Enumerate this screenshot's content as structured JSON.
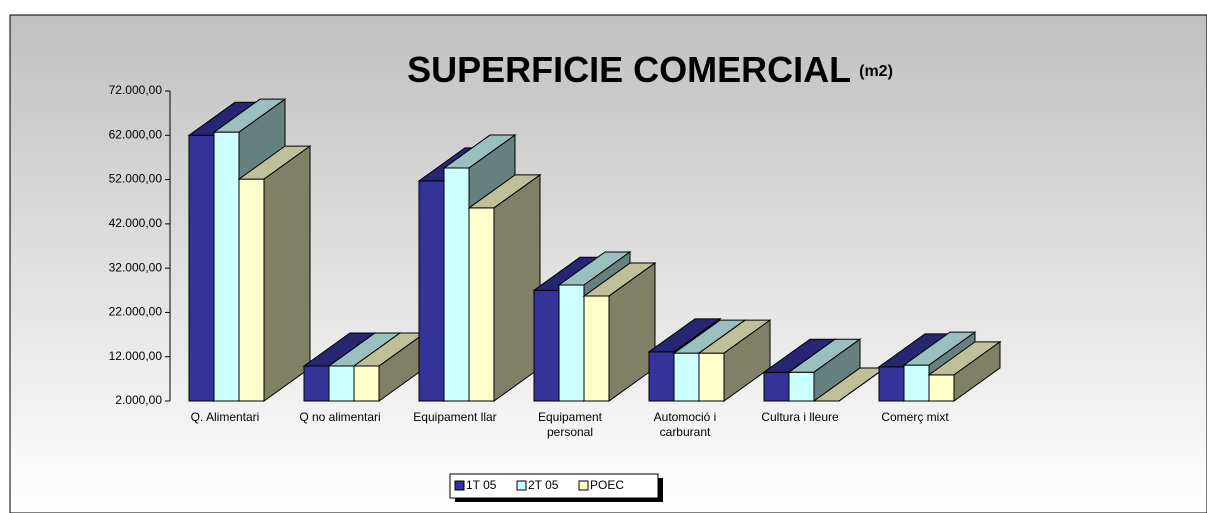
{
  "chart_data": {
    "type": "bar3d",
    "title": "SUPERFICIE COMERCIAL",
    "subtitle": "(m2)",
    "categories": [
      "Q. Alimentari",
      "Q no alimentari",
      "Equipament llar",
      "Equipament personal",
      "Automoció i carburant",
      "Cultura i lleure",
      "Comerç mixt"
    ],
    "series": [
      {
        "name": "1T 05",
        "color": "#333399",
        "values": [
          62000,
          9900,
          51700,
          27000,
          13100,
          8500,
          9700
        ]
      },
      {
        "name": "2T 05",
        "color": "#ccffff",
        "values": [
          62700,
          9900,
          54600,
          28200,
          12800,
          8500,
          10100
        ]
      },
      {
        "name": "POEC",
        "color": "#ffffcc",
        "values": [
          52100,
          9900,
          45600,
          25700,
          12800,
          2000,
          7900
        ]
      }
    ],
    "ylim": [
      2000,
      72000
    ],
    "yticks": [
      {
        "value": 2000,
        "label": "2.000,00"
      },
      {
        "value": 12000,
        "label": "12.000,00"
      },
      {
        "value": 22000,
        "label": "22.000,00"
      },
      {
        "value": 32000,
        "label": "32.000,00"
      },
      {
        "value": 42000,
        "label": "42.000,00"
      },
      {
        "value": 52000,
        "label": "52.000,00"
      },
      {
        "value": 62000,
        "label": "62.000,00"
      },
      {
        "value": 72000,
        "label": "72.000,00"
      }
    ],
    "legend": "bottom"
  }
}
